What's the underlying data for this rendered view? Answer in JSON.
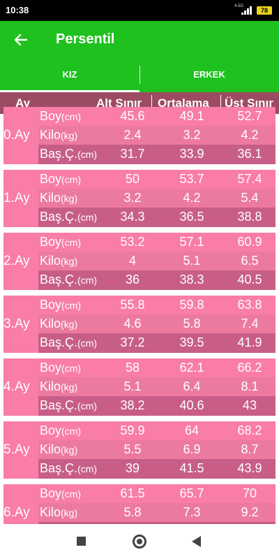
{
  "status_bar": {
    "time": "10:38",
    "network": "4.5G",
    "battery": "78"
  },
  "app_bar": {
    "title": "Persentil",
    "back_icon": "arrow-left-icon"
  },
  "tabs": [
    {
      "label": "KIZ",
      "selected": true
    },
    {
      "label": "ERKEK",
      "selected": false
    }
  ],
  "table_header": {
    "month": "Ay",
    "lower": "Alt Sınır",
    "average": "Ortalama",
    "upper": "Üst Sınır"
  },
  "measures": [
    {
      "name": "Boy",
      "unit": "(cm)"
    },
    {
      "name": "Kilo",
      "unit": "(kg)"
    },
    {
      "name": "Baş.Ç.",
      "unit": "(cm)"
    }
  ],
  "months": [
    {
      "label": "0.Ay",
      "rows": [
        [
          "45.6",
          "49.1",
          "52.7"
        ],
        [
          "2.4",
          "3.2",
          "4.2"
        ],
        [
          "31.7",
          "33.9",
          "36.1"
        ]
      ]
    },
    {
      "label": "1.Ay",
      "rows": [
        [
          "50",
          "53.7",
          "57.4"
        ],
        [
          "3.2",
          "4.2",
          "5.4"
        ],
        [
          "34.3",
          "36.5",
          "38.8"
        ]
      ]
    },
    {
      "label": "2.Ay",
      "rows": [
        [
          "53.2",
          "57.1",
          "60.9"
        ],
        [
          "4",
          "5.1",
          "6.5"
        ],
        [
          "36",
          "38.3",
          "40.5"
        ]
      ]
    },
    {
      "label": "3.Ay",
      "rows": [
        [
          "55.8",
          "59.8",
          "63.8"
        ],
        [
          "4.6",
          "5.8",
          "7.4"
        ],
        [
          "37.2",
          "39.5",
          "41.9"
        ]
      ]
    },
    {
      "label": "4.Ay",
      "rows": [
        [
          "58",
          "62.1",
          "66.2"
        ],
        [
          "5.1",
          "6.4",
          "8.1"
        ],
        [
          "38.2",
          "40.6",
          "43"
        ]
      ]
    },
    {
      "label": "5.Ay",
      "rows": [
        [
          "59.9",
          "64",
          "68.2"
        ],
        [
          "5.5",
          "6.9",
          "8.7"
        ],
        [
          "39",
          "41.5",
          "43.9"
        ]
      ]
    },
    {
      "label": "6.Ay",
      "rows": [
        [
          "61.5",
          "65.7",
          "70"
        ],
        [
          "5.8",
          "7.3",
          "9.2"
        ],
        [
          "",
          "",
          ""
        ]
      ]
    }
  ],
  "colors": {
    "green": "#1fc11f",
    "header": "#9c4b63",
    "pink": "#f97da6",
    "pink_mid": "#ec7aa0",
    "pink_dark": "#c85e87"
  },
  "nav": {
    "recent": "square-icon",
    "home": "circle-icon",
    "back": "triangle-back-icon"
  }
}
